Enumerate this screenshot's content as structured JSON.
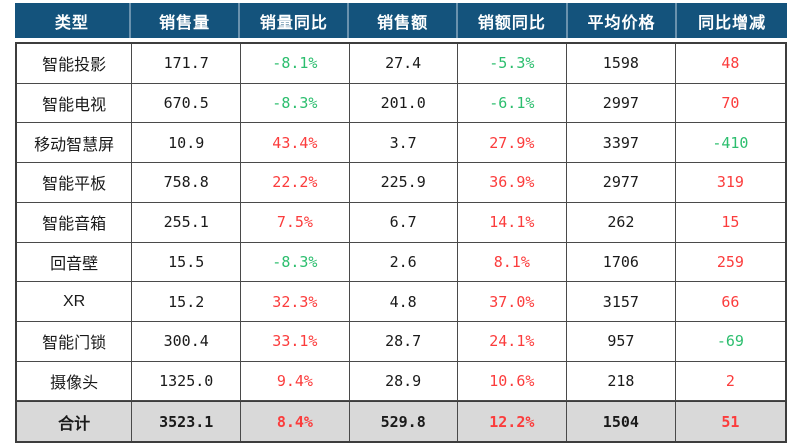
{
  "table": {
    "columns": [
      "类型",
      "销售量",
      "销量同比",
      "销售额",
      "销额同比",
      "平均价格",
      "同比增减"
    ],
    "rows": [
      {
        "type": "智能投影",
        "volume": "171.7",
        "volume_yoy": "-8.1%",
        "volume_yoy_color": "green",
        "amount": "27.4",
        "amount_yoy": "-5.3%",
        "amount_yoy_color": "green",
        "price": "1598",
        "change": "48",
        "change_color": "red"
      },
      {
        "type": "智能电视",
        "volume": "670.5",
        "volume_yoy": "-8.3%",
        "volume_yoy_color": "green",
        "amount": "201.0",
        "amount_yoy": "-6.1%",
        "amount_yoy_color": "green",
        "price": "2997",
        "change": "70",
        "change_color": "red"
      },
      {
        "type": "移动智慧屏",
        "volume": "10.9",
        "volume_yoy": "43.4%",
        "volume_yoy_color": "red",
        "amount": "3.7",
        "amount_yoy": "27.9%",
        "amount_yoy_color": "red",
        "price": "3397",
        "change": "-410",
        "change_color": "green"
      },
      {
        "type": "智能平板",
        "volume": "758.8",
        "volume_yoy": "22.2%",
        "volume_yoy_color": "red",
        "amount": "225.9",
        "amount_yoy": "36.9%",
        "amount_yoy_color": "red",
        "price": "2977",
        "change": "319",
        "change_color": "red"
      },
      {
        "type": "智能音箱",
        "volume": "255.1",
        "volume_yoy": "7.5%",
        "volume_yoy_color": "red",
        "amount": "6.7",
        "amount_yoy": "14.1%",
        "amount_yoy_color": "red",
        "price": "262",
        "change": "15",
        "change_color": "red"
      },
      {
        "type": "回音壁",
        "volume": "15.5",
        "volume_yoy": "-8.3%",
        "volume_yoy_color": "green",
        "amount": "2.6",
        "amount_yoy": "8.1%",
        "amount_yoy_color": "red",
        "price": "1706",
        "change": "259",
        "change_color": "red"
      },
      {
        "type": "XR",
        "volume": "15.2",
        "volume_yoy": "32.3%",
        "volume_yoy_color": "red",
        "amount": "4.8",
        "amount_yoy": "37.0%",
        "amount_yoy_color": "red",
        "price": "3157",
        "change": "66",
        "change_color": "red"
      },
      {
        "type": "智能门锁",
        "volume": "300.4",
        "volume_yoy": "33.1%",
        "volume_yoy_color": "red",
        "amount": "28.7",
        "amount_yoy": "24.1%",
        "amount_yoy_color": "red",
        "price": "957",
        "change": "-69",
        "change_color": "green"
      },
      {
        "type": "摄像头",
        "volume": "1325.0",
        "volume_yoy": "9.4%",
        "volume_yoy_color": "red",
        "amount": "28.9",
        "amount_yoy": "10.6%",
        "amount_yoy_color": "red",
        "price": "218",
        "change": "2",
        "change_color": "red"
      },
      {
        "type": "合计",
        "volume": "3523.1",
        "volume_yoy": "8.4%",
        "volume_yoy_color": "red",
        "amount": "529.8",
        "amount_yoy": "12.2%",
        "amount_yoy_color": "red",
        "price": "1504",
        "change": "51",
        "change_color": "red",
        "total": true
      }
    ],
    "colors": {
      "header_bg": "#14537C",
      "header_text": "#FFFFFF",
      "header_separator": "#6A92AE",
      "green": "#2CBE6E",
      "red": "#FB3C3C",
      "total_bg": "#D9D9D9",
      "border": "#3D3D3D"
    }
  }
}
